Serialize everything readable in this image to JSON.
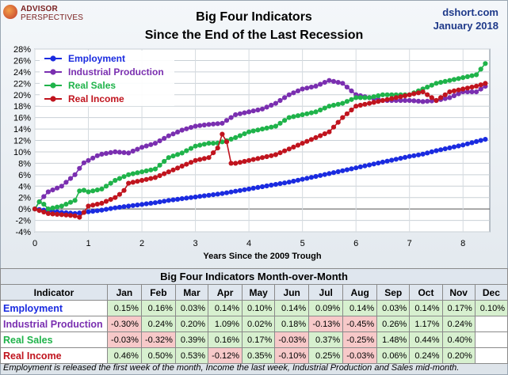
{
  "logo": {
    "line1": "ADVISOR",
    "line2": "PERSPECTIVES"
  },
  "header": {
    "title": "Big Four Indicators",
    "subtitle": "Since the End of the Last Recession",
    "source": "dshort.com",
    "date": "January 2018"
  },
  "colors": {
    "employment": "#1a2be0",
    "industrial": "#7a2fb0",
    "sales": "#1fb34a",
    "income": "#c0141e"
  },
  "chart_data": {
    "type": "line",
    "xlabel": "Years Since the 2009 Trough",
    "ylabel": "",
    "xlim": [
      0,
      8.5
    ],
    "ylim": [
      -4,
      28
    ],
    "x_ticks": [
      "0",
      "1",
      "2",
      "3",
      "4",
      "5",
      "6",
      "7",
      "8"
    ],
    "y_ticks": [
      "-4%",
      "-2%",
      "0%",
      "2%",
      "4%",
      "6%",
      "8%",
      "10%",
      "12%",
      "14%",
      "16%",
      "18%",
      "20%",
      "22%",
      "24%",
      "26%",
      "28%"
    ],
    "grid": true,
    "legend": "top-left",
    "series": [
      {
        "name": "Employment",
        "color": "#1a2be0",
        "points": [
          [
            0,
            0
          ],
          [
            0.25,
            -0.3
          ],
          [
            0.5,
            -0.6
          ],
          [
            0.75,
            -0.8
          ],
          [
            1,
            -0.5
          ],
          [
            1.25,
            -0.2
          ],
          [
            1.5,
            0.2
          ],
          [
            1.75,
            0.5
          ],
          [
            2,
            0.8
          ],
          [
            2.25,
            1.1
          ],
          [
            2.5,
            1.5
          ],
          [
            2.75,
            1.8
          ],
          [
            3,
            2.1
          ],
          [
            3.25,
            2.4
          ],
          [
            3.5,
            2.7
          ],
          [
            3.75,
            3.1
          ],
          [
            4,
            3.5
          ],
          [
            4.25,
            3.9
          ],
          [
            4.5,
            4.3
          ],
          [
            4.75,
            4.7
          ],
          [
            5,
            5.2
          ],
          [
            5.25,
            5.7
          ],
          [
            5.5,
            6.2
          ],
          [
            5.75,
            6.7
          ],
          [
            6,
            7.2
          ],
          [
            6.25,
            7.7
          ],
          [
            6.5,
            8.2
          ],
          [
            6.75,
            8.7
          ],
          [
            7,
            9.2
          ],
          [
            7.25,
            9.6
          ],
          [
            7.5,
            10.2
          ],
          [
            7.75,
            10.7
          ],
          [
            8,
            11.2
          ],
          [
            8.25,
            11.8
          ],
          [
            8.42,
            12.2
          ]
        ]
      },
      {
        "name": "Industrial Production",
        "color": "#7a2fb0",
        "points": [
          [
            0,
            0
          ],
          [
            0.1,
            1.5
          ],
          [
            0.25,
            3
          ],
          [
            0.5,
            4
          ],
          [
            0.75,
            6
          ],
          [
            0.9,
            8
          ],
          [
            1,
            8.5
          ],
          [
            1.2,
            9.5
          ],
          [
            1.5,
            10
          ],
          [
            1.75,
            9.8
          ],
          [
            2,
            10.8
          ],
          [
            2.25,
            11.5
          ],
          [
            2.5,
            12.8
          ],
          [
            2.75,
            13.8
          ],
          [
            3,
            14.5
          ],
          [
            3.25,
            14.8
          ],
          [
            3.5,
            15.0
          ],
          [
            3.75,
            16.5
          ],
          [
            4,
            17
          ],
          [
            4.25,
            17.5
          ],
          [
            4.5,
            18.5
          ],
          [
            4.75,
            20
          ],
          [
            5,
            21
          ],
          [
            5.25,
            21.5
          ],
          [
            5.5,
            22.5
          ],
          [
            5.75,
            22
          ],
          [
            6,
            20
          ],
          [
            6.25,
            19.5
          ],
          [
            6.5,
            19
          ],
          [
            6.75,
            19
          ],
          [
            7,
            19
          ],
          [
            7.25,
            18.8
          ],
          [
            7.5,
            19
          ],
          [
            7.75,
            19.5
          ],
          [
            8,
            20.5
          ],
          [
            8.25,
            20.5
          ],
          [
            8.42,
            21.5
          ]
        ]
      },
      {
        "name": "Real Sales",
        "color": "#1fb34a",
        "points": [
          [
            0,
            0
          ],
          [
            0.1,
            1.5
          ],
          [
            0.25,
            0
          ],
          [
            0.5,
            0.5
          ],
          [
            0.75,
            1.5
          ],
          [
            0.85,
            3.5
          ],
          [
            1,
            3
          ],
          [
            1.25,
            3.5
          ],
          [
            1.5,
            5
          ],
          [
            1.75,
            6
          ],
          [
            2,
            6.5
          ],
          [
            2.25,
            7
          ],
          [
            2.5,
            9
          ],
          [
            2.75,
            9.8
          ],
          [
            3,
            11
          ],
          [
            3.25,
            11.5
          ],
          [
            3.4,
            11.5
          ],
          [
            3.6,
            12
          ],
          [
            3.75,
            12.5
          ],
          [
            4,
            13.5
          ],
          [
            4.25,
            14
          ],
          [
            4.5,
            14.5
          ],
          [
            4.75,
            16
          ],
          [
            5,
            16.5
          ],
          [
            5.25,
            17
          ],
          [
            5.5,
            18
          ],
          [
            5.75,
            18.5
          ],
          [
            6,
            19.5
          ],
          [
            6.25,
            19.5
          ],
          [
            6.5,
            20
          ],
          [
            6.75,
            20
          ],
          [
            7,
            20
          ],
          [
            7.25,
            21
          ],
          [
            7.5,
            22
          ],
          [
            7.75,
            22.5
          ],
          [
            8,
            23
          ],
          [
            8.25,
            23.5
          ],
          [
            8.42,
            25.5
          ]
        ]
      },
      {
        "name": "Real Income",
        "color": "#c0141e",
        "points": [
          [
            0,
            0
          ],
          [
            0.25,
            -0.8
          ],
          [
            0.5,
            -1
          ],
          [
            0.75,
            -1.2
          ],
          [
            0.85,
            -1.5
          ],
          [
            1,
            0.5
          ],
          [
            1.25,
            1
          ],
          [
            1.5,
            2
          ],
          [
            1.65,
            3
          ],
          [
            1.75,
            4.5
          ],
          [
            2,
            5
          ],
          [
            2.25,
            5.5
          ],
          [
            2.5,
            6.5
          ],
          [
            2.75,
            7.5
          ],
          [
            3,
            8.5
          ],
          [
            3.25,
            9
          ],
          [
            3.45,
            11
          ],
          [
            3.55,
            15.2
          ],
          [
            3.62,
            8
          ],
          [
            3.75,
            8
          ],
          [
            4,
            8.5
          ],
          [
            4.25,
            9
          ],
          [
            4.5,
            9.5
          ],
          [
            4.75,
            10.5
          ],
          [
            5,
            11.5
          ],
          [
            5.25,
            12.5
          ],
          [
            5.5,
            13.5
          ],
          [
            5.75,
            16
          ],
          [
            6,
            18
          ],
          [
            6.25,
            18.5
          ],
          [
            6.5,
            19
          ],
          [
            6.75,
            19.5
          ],
          [
            7,
            20
          ],
          [
            7.25,
            20.5
          ],
          [
            7.5,
            19
          ],
          [
            7.75,
            20.5
          ],
          [
            8,
            21
          ],
          [
            8.25,
            21.5
          ],
          [
            8.42,
            22
          ]
        ]
      }
    ]
  },
  "table": {
    "title": "Big Four Indicators Month-over-Month",
    "header": [
      "Indicator",
      "Jan",
      "Feb",
      "Mar",
      "Apr",
      "May",
      "Jun",
      "Jul",
      "Aug",
      "Sep",
      "Oct",
      "Nov",
      "Dec"
    ],
    "rows": [
      {
        "name": "Employment",
        "color": "#1a2be0",
        "values": [
          "0.15%",
          "0.16%",
          "0.03%",
          "0.14%",
          "0.10%",
          "0.14%",
          "0.09%",
          "0.14%",
          "0.03%",
          "0.14%",
          "0.17%",
          "0.10%"
        ]
      },
      {
        "name": "Industrial Production",
        "color": "#7a2fb0",
        "values": [
          "-0.30%",
          "0.24%",
          "0.20%",
          "1.09%",
          "0.02%",
          "0.18%",
          "-0.13%",
          "-0.45%",
          "0.26%",
          "1.17%",
          "0.24%",
          ""
        ]
      },
      {
        "name": "Real Sales",
        "color": "#1fb34a",
        "values": [
          "-0.03%",
          "-0.32%",
          "0.39%",
          "0.16%",
          "0.17%",
          "-0.03%",
          "0.37%",
          "-0.25%",
          "1.48%",
          "0.44%",
          "0.40%",
          ""
        ]
      },
      {
        "name": "Real Income",
        "color": "#c0141e",
        "values": [
          "0.46%",
          "0.50%",
          "0.53%",
          "-0.12%",
          "0.35%",
          "-0.10%",
          "0.25%",
          "-0.03%",
          "0.06%",
          "0.24%",
          "0.20%",
          ""
        ]
      }
    ]
  },
  "footnote": "Employment is released the first week of the month, Income the last week, Industrial Production and Sales mid-month."
}
